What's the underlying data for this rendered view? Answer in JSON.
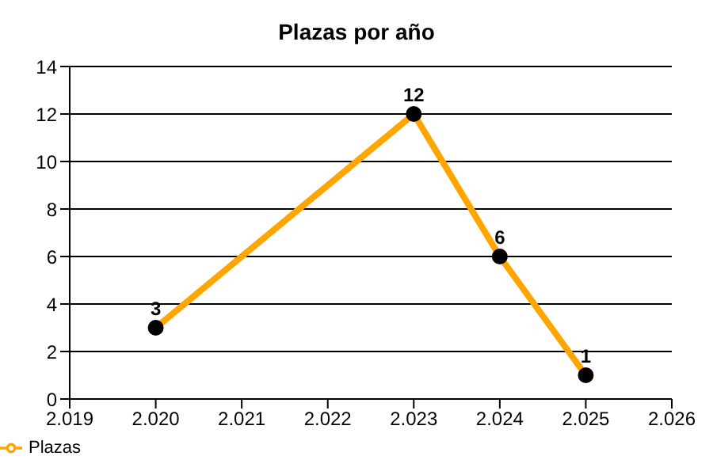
{
  "chart_data": {
    "type": "line",
    "title": "Plazas por año",
    "x": [
      2020,
      2023,
      2024,
      2025
    ],
    "series": [
      {
        "name": "Plazas",
        "color": "#ffa500",
        "values": [
          3,
          12,
          6,
          1
        ]
      }
    ],
    "xlim": [
      2019,
      2026
    ],
    "xticks": [
      {
        "value": 2019,
        "label": "2.019"
      },
      {
        "value": 2020,
        "label": "2.020"
      },
      {
        "value": 2021,
        "label": "2.021"
      },
      {
        "value": 2022,
        "label": "2.022"
      },
      {
        "value": 2023,
        "label": "2.023"
      },
      {
        "value": 2024,
        "label": "2.024"
      },
      {
        "value": 2025,
        "label": "2.025"
      },
      {
        "value": 2026,
        "label": "2.026"
      }
    ],
    "ylim": [
      0,
      14
    ],
    "yticks": [
      0,
      2,
      4,
      6,
      8,
      10,
      12,
      14
    ],
    "grid": "y",
    "legend": "bottom left",
    "marker": "circle",
    "line_style": "solid",
    "data_labels": true
  }
}
